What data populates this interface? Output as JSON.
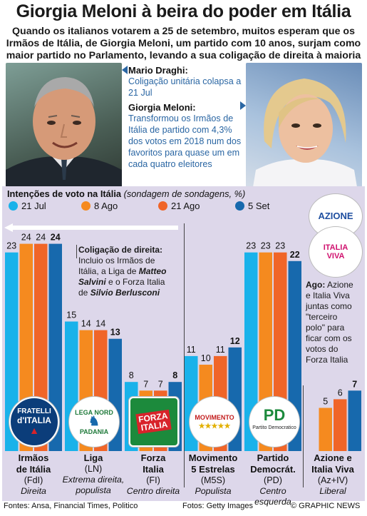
{
  "header": {
    "title": "Giorgia Meloni à beira do poder em Itália",
    "subtitle": "Quando os italianos votarem a 25 de setembro, muitos esperam que os Irmãos de Itália, de Giorgia Meloni, um partido com 10 anos, surjam como maior partido no Parlamento, levando a sua coligação de direita à maioria"
  },
  "callouts": {
    "draghi_name": "Mario Draghi:",
    "draghi_text": "Coligação unitária colapsa a 21 Jul",
    "meloni_name": "Giorgia Meloni:",
    "meloni_text": "Transformou os Irmãos de Itália de partido com 4,3% dos votos em 2018 num dos favoritos para quase um em cada quatro eleitores"
  },
  "panel": {
    "title_bold": "Intenções de voto na Itália",
    "title_italic": "(sondagem de sondagens, %)"
  },
  "colors": {
    "jul21": "#19b2ea",
    "ago8": "#f58a1f",
    "ago21": "#f06528",
    "set5": "#1769ad",
    "panel_bg": "#ddd7ea",
    "note_blue": "#2a66a3"
  },
  "notes": {
    "coalition_title": "Coligação de direita:",
    "coalition_l1": "Incluio os Irmãos de",
    "coalition_l2a": "Itália, a Liga de ",
    "coalition_l2b": "Matteo",
    "coalition_l3a": "Salvini",
    "coalition_l3b": " e o Forza Italia",
    "coalition_l4a": "de ",
    "coalition_l4b": "Silvio Berlusconi",
    "ago_title": "Ago:",
    "ago_l1": " Azione",
    "ago_l2": "e Italia Viva",
    "ago_l3": "juntas como",
    "ago_l4": "\"terceiro",
    "ago_l5": "polo\" para",
    "ago_l6": "ficar com os",
    "ago_l7": "votos do",
    "ago_l8": "Forza Italia"
  },
  "logos": {
    "fdi_1": "FRATELLI",
    "fdi_2": "d'ITALIA",
    "lega_1": "LEGA NORD",
    "lega_2": "PADANIA",
    "fi_1": "FORZA",
    "fi_2": "ITALIA",
    "m5s_1": "MOVIMENTO",
    "m5s_2": "★★★★★",
    "pd_1": "PD",
    "pd_2": "Partito Democratico",
    "azione": "AZIONE",
    "iv_1": "ITALIA",
    "iv_2": "VIVA"
  },
  "footer": {
    "sources": "Fontes: Ansa, Financial Times, Politico",
    "photos": "Fotos: Getty Images",
    "credit": "© GRAPHIC NEWS"
  },
  "chart_data": {
    "type": "bar",
    "title": "Intenções de voto na Itália (sondagem de sondagens, %)",
    "series": [
      {
        "name": "21 Jul",
        "values": [
          23,
          15,
          8,
          11,
          23,
          null
        ]
      },
      {
        "name": "8 Ago",
        "values": [
          24,
          14,
          7,
          10,
          23,
          5
        ]
      },
      {
        "name": "21 Ago",
        "values": [
          24,
          14,
          7,
          11,
          23,
          6
        ]
      },
      {
        "name": "5 Set",
        "values": [
          24,
          13,
          8,
          12,
          22,
          7
        ]
      }
    ],
    "parties": [
      {
        "name": "Irmãos de Itália",
        "abbr": "(FdI)",
        "ideology": "Direita"
      },
      {
        "name": "Liga",
        "abbr": "(LN)",
        "ideology": "Extrema direita, populista"
      },
      {
        "name": "Forza Italia",
        "abbr": "(FI)",
        "ideology": "Centro direita"
      },
      {
        "name": "Movimento 5 Estrelas",
        "abbr": "(M5S)",
        "ideology": "Populista"
      },
      {
        "name": "Partido Democrát.",
        "abbr": "(PD)",
        "ideology": "Centro esquerda"
      },
      {
        "name": "Azione e Italia Viva",
        "abbr": "(Az+IV)",
        "ideology": "Liberal"
      }
    ],
    "name_lines": [
      [
        "Irmãos",
        "de Itália"
      ],
      [
        "Liga"
      ],
      [
        "Forza",
        "Italia"
      ],
      [
        "Movimento",
        "5 Estrelas"
      ],
      [
        "Partido",
        "Democrát."
      ],
      [
        "Azione e",
        "Italia Viva"
      ]
    ],
    "ideology_lines": [
      [
        "Direita"
      ],
      [
        "Extrema direita,",
        "populista"
      ],
      [
        "Centro direita"
      ],
      [
        "Populista"
      ],
      [
        "Centro esquerda"
      ],
      [
        "Liberal"
      ]
    ],
    "legend_placement": "top",
    "grid": false
  }
}
